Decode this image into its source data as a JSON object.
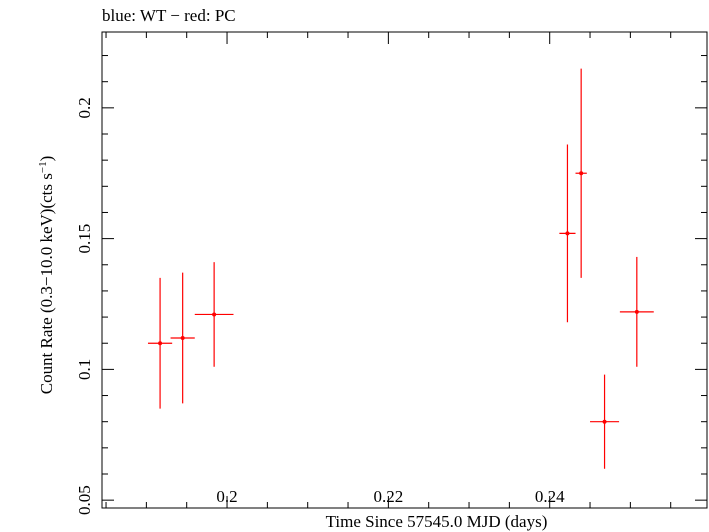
{
  "chart_data": {
    "type": "scatter",
    "title": "blue: WT − red: PC",
    "xlabel": "Time Since 57545.0 MJD (days)",
    "ylabel_main": "Count Rate (0.3−10.0 keV)(cts s",
    "ylabel_sup": "−1",
    "ylabel_close": ")",
    "xlim": [
      0.1845,
      0.2595
    ],
    "ylim": [
      0.047,
      0.229
    ],
    "xticks": [
      0.2,
      0.22,
      0.24
    ],
    "xtick_labels": [
      "0.2",
      "0.22",
      "0.24"
    ],
    "yticks": [
      0.05,
      0.1,
      0.15,
      0.2
    ],
    "ytick_labels": [
      "0.05",
      "0.1",
      "0.15",
      "0.2"
    ],
    "grid": false,
    "series": [
      {
        "name": "PC",
        "color": "#ff0000",
        "points": [
          {
            "x": 0.1917,
            "xerr": 0.0015,
            "y": 0.11,
            "yerr_low": 0.025,
            "yerr_high": 0.025
          },
          {
            "x": 0.1945,
            "xerr": 0.0015,
            "y": 0.112,
            "yerr_low": 0.025,
            "yerr_high": 0.025
          },
          {
            "x": 0.1984,
            "xerr": 0.0024,
            "y": 0.121,
            "yerr_low": 0.02,
            "yerr_high": 0.02
          },
          {
            "x": 0.2422,
            "xerr": 0.001,
            "y": 0.152,
            "yerr_low": 0.034,
            "yerr_high": 0.034
          },
          {
            "x": 0.2439,
            "xerr": 0.0007,
            "y": 0.175,
            "yerr_low": 0.04,
            "yerr_high": 0.04
          },
          {
            "x": 0.2468,
            "xerr": 0.0018,
            "y": 0.08,
            "yerr_low": 0.018,
            "yerr_high": 0.018
          },
          {
            "x": 0.2508,
            "xerr": 0.0021,
            "y": 0.122,
            "yerr_low": 0.021,
            "yerr_high": 0.021
          }
        ]
      }
    ]
  }
}
